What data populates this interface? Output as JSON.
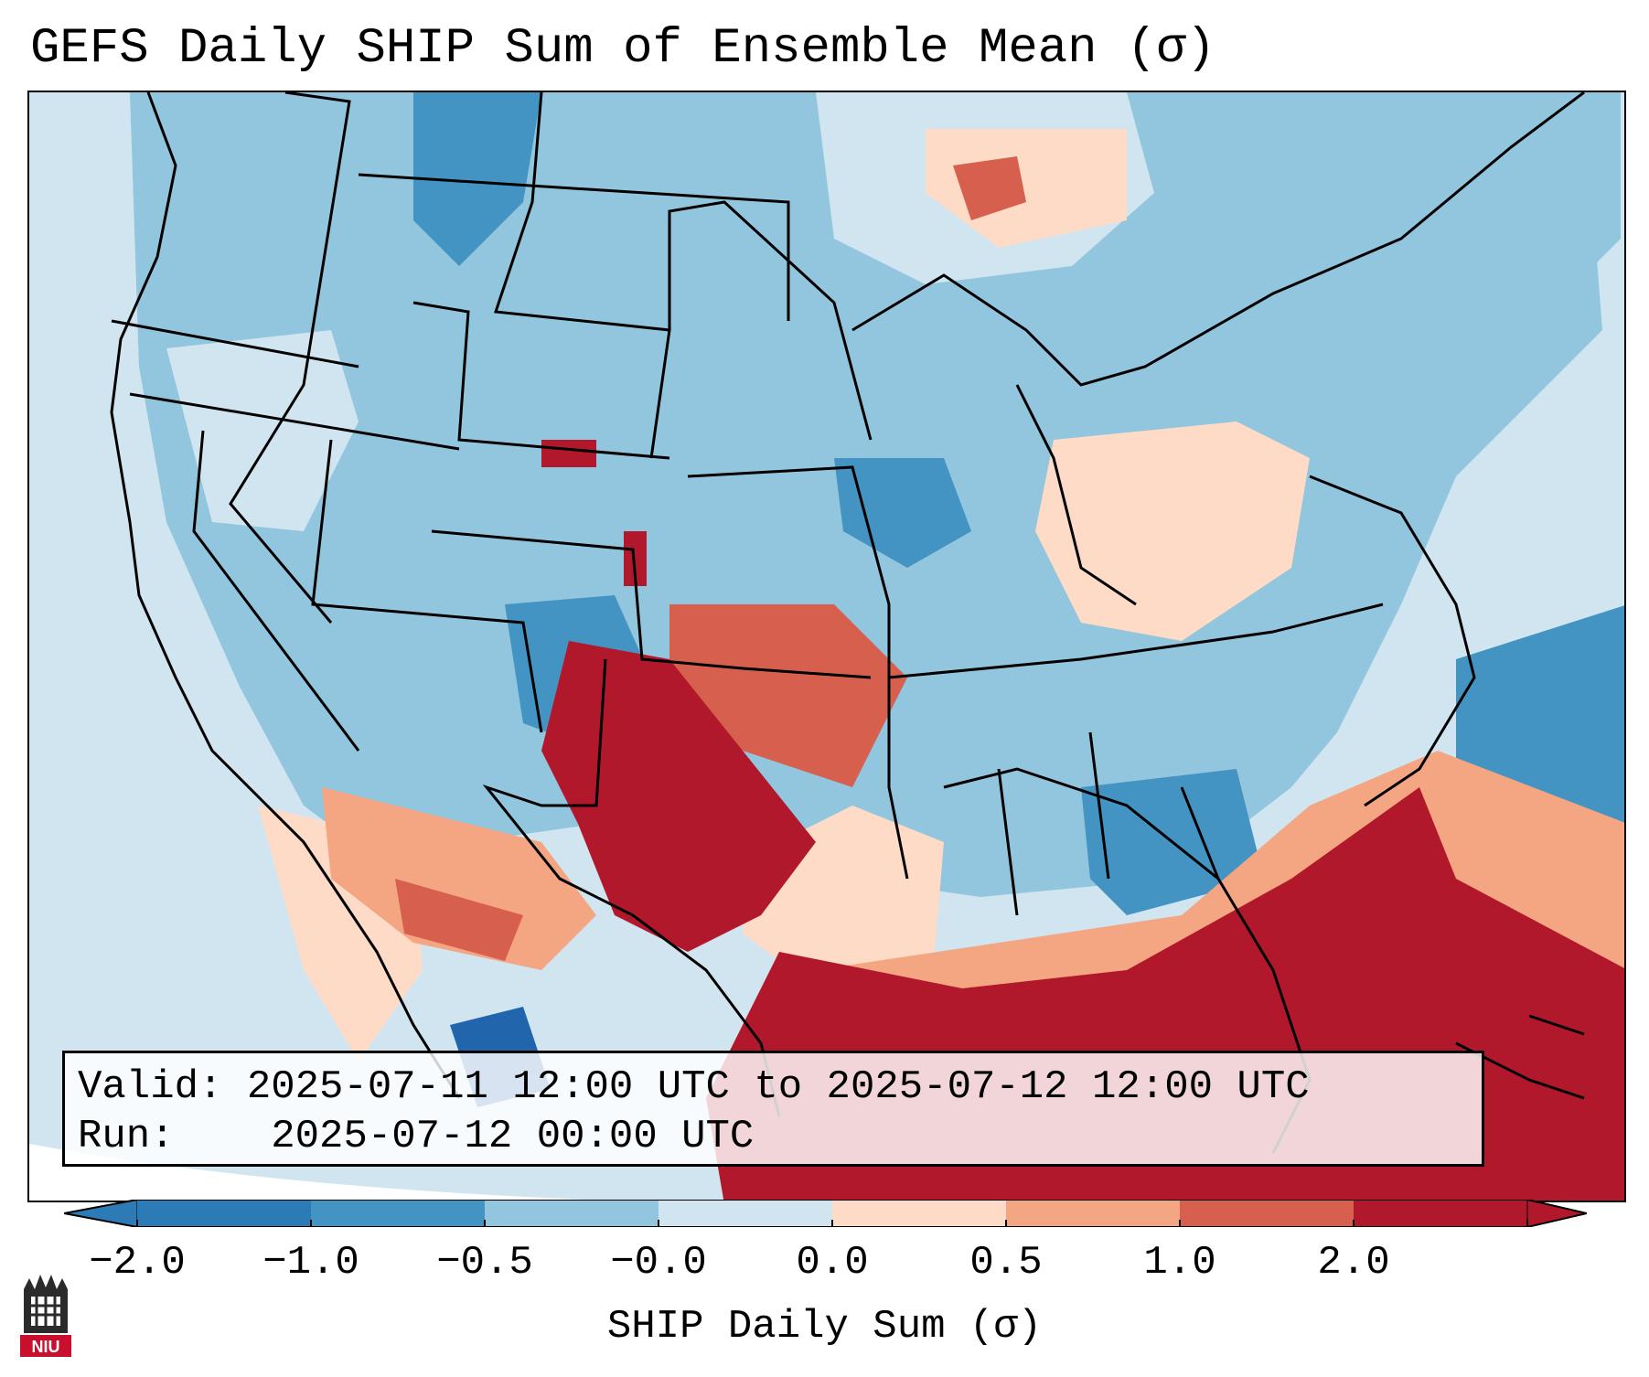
{
  "title": "GEFS Daily SHIP Sum of Ensemble Mean (σ)",
  "info": {
    "valid_label": "Valid:",
    "valid_value": "2025-07-11 12:00 UTC to 2025-07-12 12:00 UTC",
    "run_label": "Run:",
    "run_value": "2025-07-12 00:00 UTC"
  },
  "colorbar": {
    "label": "SHIP Daily Sum (σ)",
    "ticks": [
      "−2.0",
      "−1.0",
      "−0.5",
      "−0.0",
      "0.0",
      "0.5",
      "1.0",
      "2.0"
    ],
    "colors": [
      "#2c7bb6",
      "#4393c3",
      "#92c5de",
      "#d1e5f0",
      "#fddbc7",
      "#f4a582",
      "#d6604d",
      "#b2182b"
    ]
  },
  "logo": {
    "text": "NIU",
    "color": "#c8102e"
  }
}
